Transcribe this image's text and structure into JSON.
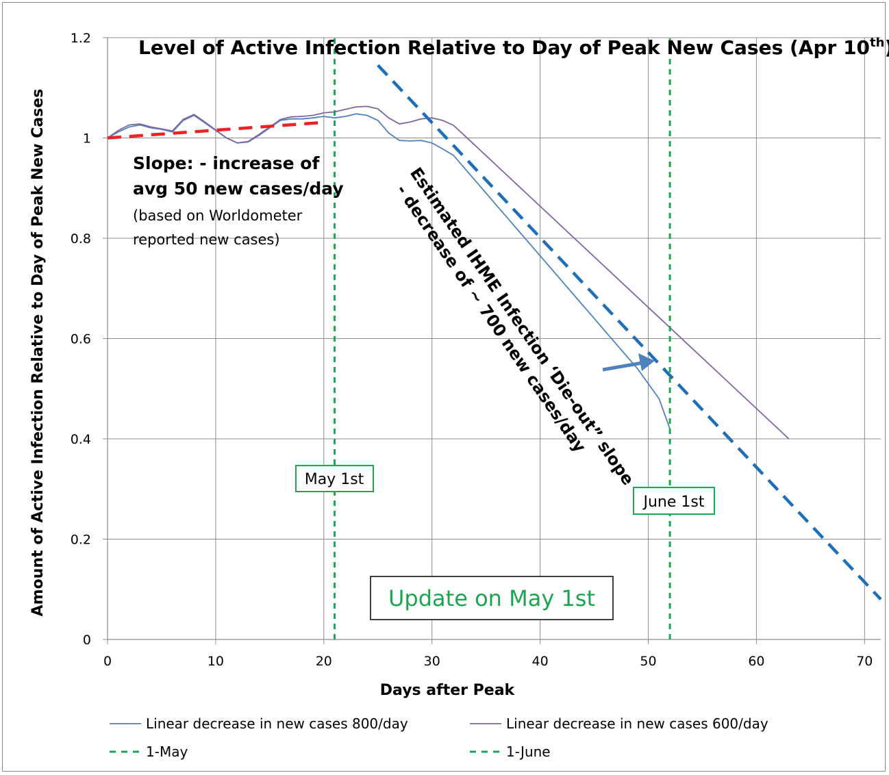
{
  "chart_data": {
    "type": "line",
    "title": "Level of Active Infection Relative to Day of Peak New Cases (Apr 10",
    "title_sup": "th",
    "title_close": ")",
    "xlabel": "Days after Peak",
    "ylabel": "Amount of Active Infection Relative to Day of Peak New Cases",
    "xlim": [
      0,
      71.5
    ],
    "ylim": [
      0,
      1.2
    ],
    "x_ticks": [
      "0",
      "10",
      "20",
      "30",
      "40",
      "50",
      "60",
      "70"
    ],
    "y_ticks": [
      "0",
      "0.2",
      "0.4",
      "0.6",
      "0.8",
      "1",
      "1.2"
    ],
    "grid": true,
    "legend_position": "bottom",
    "series": [
      {
        "name": "Linear decrease in new cases 800/day",
        "color": "#4f81bd",
        "x": [
          0,
          1,
          2,
          3,
          4,
          5,
          6,
          7,
          8,
          9,
          10,
          11,
          12,
          13,
          14,
          15,
          16,
          17,
          18,
          19,
          20,
          21,
          22,
          23,
          24,
          25,
          26,
          27,
          28,
          29,
          30,
          31,
          32,
          33,
          34,
          35,
          36,
          37,
          38,
          39,
          40,
          41,
          42,
          43,
          44,
          45,
          46,
          47,
          48,
          49,
          50,
          51,
          52
        ],
        "y": [
          1.0,
          1.012,
          1.022,
          1.026,
          1.02,
          1.017,
          1.012,
          1.035,
          1.045,
          1.03,
          1.015,
          1.0,
          0.99,
          0.992,
          1.005,
          1.02,
          1.035,
          1.038,
          1.038,
          1.04,
          1.043,
          1.04,
          1.043,
          1.048,
          1.045,
          1.035,
          1.01,
          0.995,
          0.994,
          0.995,
          0.99,
          0.978,
          0.965,
          0.94,
          0.915,
          0.89,
          0.865,
          0.84,
          0.815,
          0.79,
          0.765,
          0.74,
          0.715,
          0.69,
          0.665,
          0.64,
          0.615,
          0.59,
          0.565,
          0.54,
          0.51,
          0.48,
          0.42
        ]
      },
      {
        "name": "Linear decrease in new cases 600/day",
        "color": "#8064a2",
        "x": [
          0,
          1,
          2,
          3,
          4,
          5,
          6,
          7,
          8,
          9,
          10,
          11,
          12,
          13,
          14,
          15,
          16,
          17,
          18,
          19,
          20,
          21,
          22,
          23,
          24,
          25,
          26,
          27,
          28,
          29,
          30,
          31,
          32,
          33,
          63
        ],
        "y": [
          1.0,
          1.015,
          1.026,
          1.028,
          1.022,
          1.018,
          1.014,
          1.037,
          1.047,
          1.032,
          1.016,
          1.0,
          0.99,
          0.993,
          1.007,
          1.022,
          1.037,
          1.042,
          1.043,
          1.045,
          1.05,
          1.052,
          1.057,
          1.062,
          1.063,
          1.058,
          1.04,
          1.028,
          1.032,
          1.038,
          1.04,
          1.035,
          1.025,
          1.005,
          0.4
        ]
      },
      {
        "name": "1-May",
        "color": "#1aa550",
        "x": [
          21,
          21
        ],
        "y": [
          0,
          1.2
        ]
      },
      {
        "name": "1-June",
        "color": "#1aa550",
        "x": [
          52,
          52
        ],
        "y": [
          0,
          1.2
        ]
      }
    ],
    "trend_lines": [
      {
        "color": "#ee2222",
        "x": [
          0,
          20
        ],
        "y": [
          1.0,
          1.031
        ]
      },
      {
        "color": "#1f6fb8",
        "x": [
          25,
          71.5
        ],
        "y": [
          1.145,
          0.08
        ]
      }
    ],
    "annotations": {
      "slope_line1": "Slope: - increase of",
      "slope_line2": "avg 50 new cases/day",
      "basis_line1": "(based on Worldometer",
      "basis_line2": "reported new cases)",
      "ihme_line1": "Estimated IHME Infection ‘Die-out” slope",
      "ihme_line2": "- decrease of ~ 700 new cases/day",
      "may_box": "May 1st",
      "june_box": "June 1st",
      "update_box": "Update on May 1st"
    },
    "legend": [
      {
        "label": "Linear decrease in new cases 800/day",
        "color": "#4f81bd",
        "dashed": false
      },
      {
        "label": "Linear decrease in new cases 600/day",
        "color": "#8064a2",
        "dashed": false
      },
      {
        "label": "1-May",
        "color": "#1aa550",
        "dashed": true
      },
      {
        "label": "1-June",
        "color": "#1aa550",
        "dashed": true
      }
    ]
  }
}
